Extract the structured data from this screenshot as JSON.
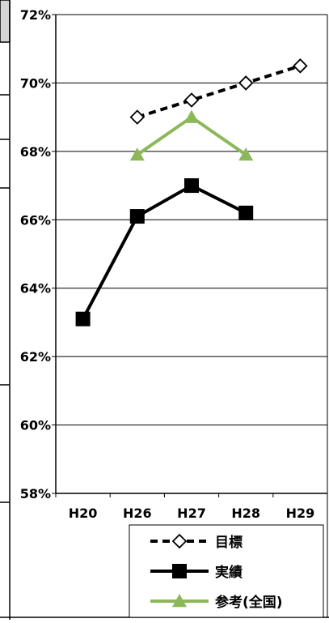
{
  "chart_data": {
    "type": "line",
    "categories": [
      "H20",
      "H26",
      "H27",
      "H28",
      "H29"
    ],
    "yticks": [
      "58%",
      "60%",
      "62%",
      "64%",
      "66%",
      "68%",
      "70%",
      "72%"
    ],
    "ylim": [
      58,
      72
    ],
    "grid": true,
    "legend_placement": "bottom-right",
    "series": [
      {
        "name": "目標",
        "values": [
          null,
          69.0,
          69.5,
          70.0,
          70.5
        ],
        "color": "#000000",
        "line": "dashed",
        "marker": "diamond-open"
      },
      {
        "name": "実績",
        "values": [
          63.1,
          66.1,
          67.0,
          66.2,
          null
        ],
        "color": "#000000",
        "line": "solid",
        "marker": "square"
      },
      {
        "name": "参考(全国)",
        "values": [
          null,
          67.9,
          69.0,
          67.9,
          null
        ],
        "color": "#8db85a",
        "line": "solid",
        "marker": "triangle"
      }
    ]
  }
}
